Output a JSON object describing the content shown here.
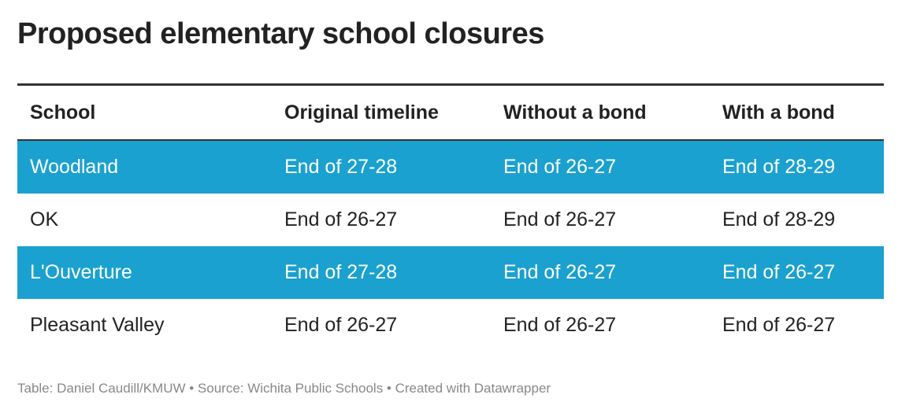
{
  "title": "Proposed elementary school closures",
  "table": {
    "header": [
      "School",
      "Original timeline",
      "Without a bond",
      "With a bond"
    ],
    "rows": [
      [
        "Woodland",
        "End of 27-28",
        "End of 26-27",
        "End of 28-29"
      ],
      [
        "OK",
        "End of 26-27",
        "End of 26-27",
        "End of 28-29"
      ],
      [
        "L'Ouverture",
        "End of 27-28",
        "End of 26-27",
        "End of 26-27"
      ],
      [
        "Pleasant Valley",
        "End of 26-27",
        "End of 26-27",
        "End of 26-27"
      ]
    ]
  },
  "footer": "Table: Daniel Caudill/KMUW • Source: Wichita Public Schools • Created with Datawrapper"
}
